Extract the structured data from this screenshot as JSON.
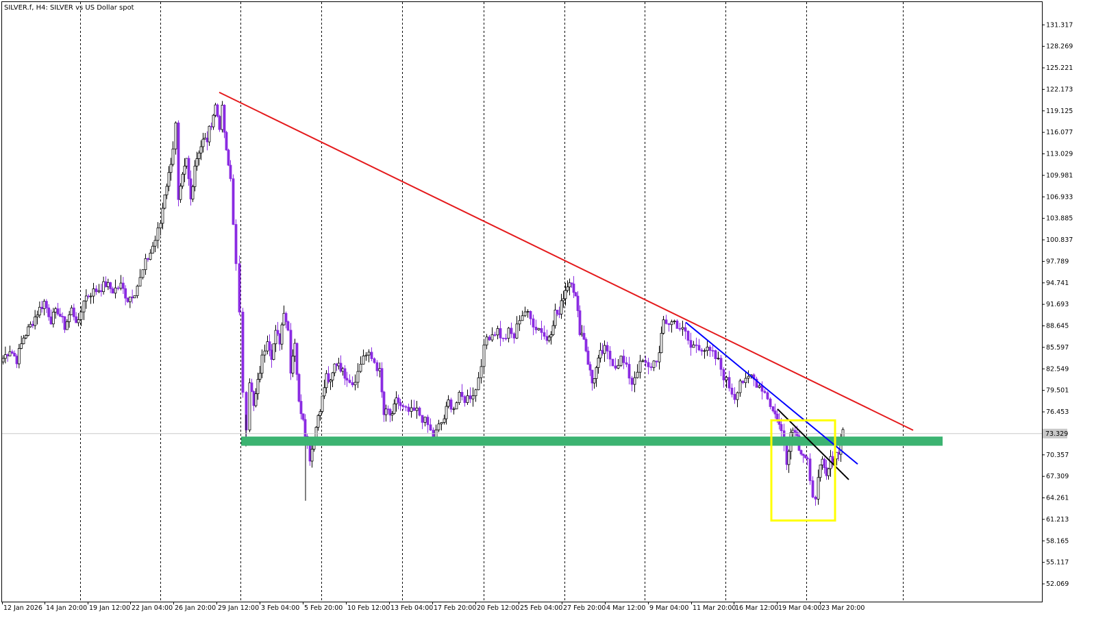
{
  "title": "SILVER.f, H4:  SILVER vs US Dollar spot",
  "colors": {
    "background": "#ffffff",
    "bull_candle": "#000000",
    "bear_candle": "#8A2BE2",
    "resistance_line": "#E41A1C",
    "trend_line_blue": "#0000FF",
    "trend_line_black": "#000000",
    "support_zone": "#3CB371",
    "highlight_box": "#FFFF00",
    "current_price_line": "#C8C8C8"
  },
  "chart_data": {
    "type": "candlestick",
    "symbol": "SILVER.f",
    "timeframe": "H4",
    "description": "SILVER vs US Dollar spot",
    "ylim": [
      49.5,
      134.5
    ],
    "y_ticks": [
      "131.317",
      "128.269",
      "125.221",
      "122.173",
      "119.125",
      "116.077",
      "113.029",
      "109.981",
      "106.933",
      "103.885",
      "100.837",
      "97.789",
      "94.741",
      "91.693",
      "88.645",
      "85.597",
      "82.549",
      "79.501",
      "76.453",
      "73.329",
      "70.357",
      "67.309",
      "64.261",
      "61.213",
      "58.165",
      "55.117",
      "52.069"
    ],
    "x_labels": [
      "12 Jan 2026",
      "14 Jan 20:00",
      "19 Jan 12:00",
      "22 Jan 04:00",
      "26 Jan 20:00",
      "29 Jan 12:00",
      "3 Feb 04:00",
      "5 Feb 20:00",
      "10 Feb 12:00",
      "13 Feb 04:00",
      "17 Feb 20:00",
      "20 Feb 12:00",
      "25 Feb 04:00",
      "27 Feb 20:00",
      "4 Mar 12:00",
      "9 Mar 04:00",
      "11 Mar 20:00",
      "16 Mar 12:00",
      "19 Mar 04:00",
      "23 Mar 20:00"
    ],
    "current_price": 73.329,
    "current_price_label": "73.329",
    "price_path": [
      [
        0,
        84.0
      ],
      [
        10,
        85.3
      ],
      [
        20,
        83.8
      ],
      [
        30,
        87.0
      ],
      [
        40,
        88.6
      ],
      [
        50,
        90.5
      ],
      [
        60,
        92.0
      ],
      [
        70,
        89.5
      ],
      [
        80,
        90.8
      ],
      [
        90,
        88.5
      ],
      [
        100,
        90.9
      ],
      [
        110,
        88.8
      ],
      [
        118,
        92.5
      ],
      [
        128,
        93.3
      ],
      [
        140,
        93.8
      ],
      [
        150,
        94.5
      ],
      [
        160,
        93.6
      ],
      [
        172,
        94.3
      ],
      [
        182,
        92.4
      ],
      [
        192,
        93.5
      ],
      [
        200,
        95.2
      ],
      [
        208,
        97.5
      ],
      [
        215,
        99.0
      ],
      [
        222,
        100.8
      ],
      [
        230,
        103.2
      ],
      [
        236,
        107.5
      ],
      [
        242,
        110.0
      ],
      [
        248,
        114.0
      ],
      [
        252,
        117.0
      ],
      [
        256,
        106.0
      ],
      [
        262,
        109.5
      ],
      [
        268,
        112.0
      ],
      [
        274,
        106.5
      ],
      [
        280,
        111.5
      ],
      [
        286,
        113.5
      ],
      [
        292,
        114.8
      ],
      [
        298,
        115.0
      ],
      [
        304,
        117.5
      ],
      [
        310,
        119.8
      ],
      [
        316,
        117.0
      ],
      [
        320,
        119.2
      ],
      [
        326,
        113.0
      ],
      [
        332,
        109.5
      ],
      [
        336,
        103.5
      ],
      [
        340,
        97.0
      ],
      [
        345,
        90.0
      ],
      [
        350,
        79.5
      ],
      [
        355,
        74.5
      ],
      [
        360,
        81.0
      ],
      [
        366,
        77.0
      ],
      [
        372,
        80.5
      ],
      [
        378,
        84.0
      ],
      [
        386,
        87.0
      ],
      [
        392,
        84.5
      ],
      [
        398,
        87.5
      ],
      [
        404,
        86.5
      ],
      [
        410,
        91.0
      ],
      [
        416,
        88.0
      ],
      [
        420,
        82.5
      ],
      [
        426,
        86.5
      ],
      [
        432,
        77.5
      ],
      [
        438,
        75.8
      ],
      [
        444,
        71.5
      ],
      [
        448,
        70.0
      ],
      [
        454,
        72.5
      ],
      [
        460,
        76.0
      ],
      [
        466,
        78.3
      ],
      [
        472,
        81.5
      ],
      [
        478,
        80.3
      ],
      [
        484,
        83.0
      ],
      [
        490,
        83.5
      ],
      [
        496,
        82.0
      ],
      [
        502,
        81.5
      ],
      [
        510,
        80.5
      ],
      [
        518,
        82.0
      ],
      [
        526,
        84.5
      ],
      [
        534,
        84.3
      ],
      [
        542,
        83.5
      ],
      [
        550,
        82.0
      ],
      [
        556,
        76.0
      ],
      [
        562,
        76.5
      ],
      [
        568,
        75.5
      ],
      [
        574,
        78.5
      ],
      [
        580,
        77.0
      ],
      [
        588,
        76.5
      ],
      [
        596,
        76.3
      ],
      [
        604,
        76.5
      ],
      [
        612,
        75.5
      ],
      [
        620,
        74.5
      ],
      [
        628,
        72.7
      ],
      [
        636,
        74.3
      ],
      [
        644,
        75.5
      ],
      [
        650,
        77.8
      ],
      [
        658,
        77.0
      ],
      [
        666,
        78.5
      ],
      [
        674,
        78.2
      ],
      [
        682,
        78.7
      ],
      [
        690,
        79.5
      ],
      [
        698,
        83.5
      ],
      [
        706,
        87.0
      ],
      [
        714,
        87.5
      ],
      [
        722,
        88.0
      ],
      [
        730,
        86.5
      ],
      [
        738,
        87.7
      ],
      [
        746,
        87.0
      ],
      [
        754,
        89.8
      ],
      [
        762,
        90.7
      ],
      [
        770,
        89.5
      ],
      [
        778,
        88.5
      ],
      [
        786,
        88.0
      ],
      [
        794,
        86.5
      ],
      [
        800,
        88.0
      ],
      [
        806,
        90.5
      ],
      [
        812,
        90.2
      ],
      [
        818,
        93.0
      ],
      [
        824,
        94.5
      ],
      [
        830,
        95.2
      ],
      [
        836,
        92.5
      ],
      [
        842,
        88.0
      ],
      [
        848,
        87.0
      ],
      [
        854,
        83.5
      ],
      [
        860,
        80.5
      ],
      [
        866,
        82.5
      ],
      [
        872,
        84.5
      ],
      [
        878,
        85.2
      ],
      [
        886,
        84.0
      ],
      [
        894,
        83.0
      ],
      [
        902,
        84.0
      ],
      [
        910,
        82.5
      ],
      [
        918,
        80.5
      ],
      [
        926,
        82.5
      ],
      [
        934,
        83.5
      ],
      [
        942,
        82.5
      ],
      [
        950,
        83.5
      ],
      [
        958,
        84.5
      ],
      [
        964,
        89.3
      ],
      [
        972,
        89.0
      ],
      [
        980,
        89.2
      ],
      [
        988,
        88.3
      ],
      [
        996,
        87.5
      ],
      [
        1004,
        85.5
      ],
      [
        1012,
        86.0
      ],
      [
        1020,
        85.5
      ],
      [
        1028,
        85.0
      ],
      [
        1036,
        84.5
      ],
      [
        1044,
        83.5
      ],
      [
        1052,
        81.5
      ],
      [
        1060,
        80.0
      ],
      [
        1068,
        78.5
      ],
      [
        1076,
        81.0
      ],
      [
        1084,
        80.5
      ],
      [
        1092,
        81.5
      ],
      [
        1100,
        80.5
      ],
      [
        1108,
        79.8
      ],
      [
        1116,
        78.5
      ],
      [
        1124,
        76.5
      ],
      [
        1130,
        75.5
      ],
      [
        1136,
        73.5
      ],
      [
        1140,
        72.0
      ],
      [
        1144,
        69.5
      ],
      [
        1150,
        73.5
      ],
      [
        1156,
        74.2
      ],
      [
        1162,
        71.5
      ],
      [
        1168,
        70.5
      ],
      [
        1174,
        69.5
      ],
      [
        1178,
        66.0
      ],
      [
        1182,
        63.8
      ],
      [
        1186,
        64.5
      ],
      [
        1190,
        67.8
      ],
      [
        1196,
        69.0
      ],
      [
        1202,
        67.0
      ],
      [
        1208,
        69.5
      ],
      [
        1214,
        70.0
      ],
      [
        1220,
        71.0
      ],
      [
        1226,
        73.9
      ]
    ],
    "annotations": {
      "resistance_line": {
        "from": [
          320,
          121.7
        ],
        "to": [
          1333,
          73.8
        ]
      },
      "blue_trend_line": {
        "from": [
          1001,
          89.1
        ],
        "to": [
          1252,
          69.0
        ]
      },
      "black_trend_line": {
        "from": [
          1135,
          76.8
        ],
        "to": [
          1239,
          66.8
        ]
      },
      "support_zone": {
        "x0": 352,
        "x1": 1376,
        "y_top": 72.9,
        "y_bottom": 71.6
      },
      "highlight_box": {
        "x0": 1126,
        "x1": 1219,
        "y_top": 75.2,
        "y_bottom": 61.0
      }
    }
  }
}
